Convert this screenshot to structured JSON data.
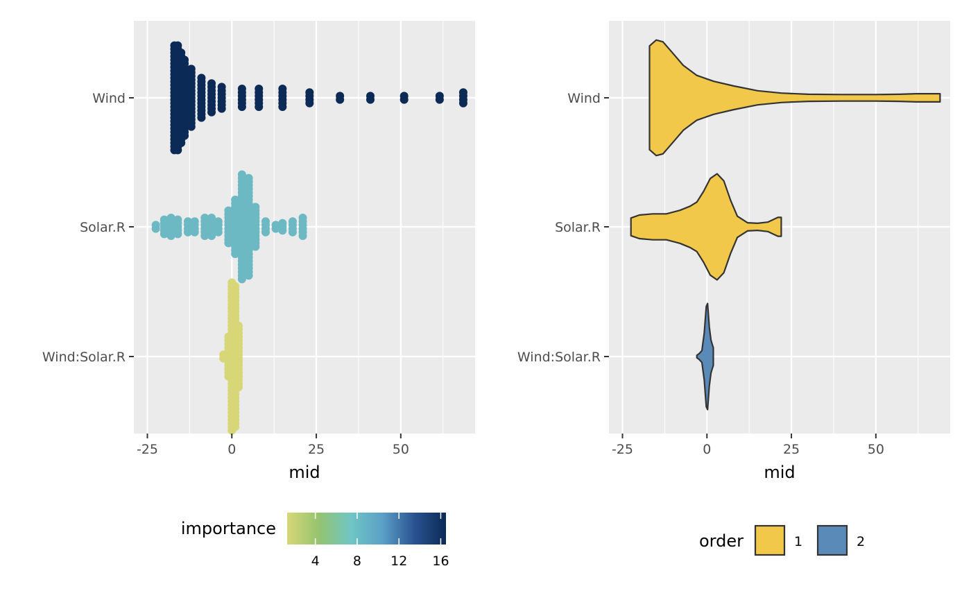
{
  "chart_data": [
    {
      "type": "scatter",
      "subtype": "beeswarm",
      "title": "",
      "xlabel": "mid",
      "ylabel": "",
      "xlim": [
        -29,
        72
      ],
      "x_ticks": [
        -25,
        0,
        25,
        50
      ],
      "x_tick_labels": [
        "-25",
        "0",
        "25",
        "50"
      ],
      "categories": [
        "Wind",
        "Solar.R",
        "Wind:Solar.R"
      ],
      "grid": true,
      "series": [
        {
          "category": "Wind",
          "importance": 16.5,
          "color": "#0b2a55",
          "points": [
            {
              "x": -17,
              "n": 30
            },
            {
              "x": -16,
              "n": 30
            },
            {
              "x": -15,
              "n": 26
            },
            {
              "x": -14,
              "n": 22
            },
            {
              "x": -12,
              "n": 17
            },
            {
              "x": -9,
              "n": 12
            },
            {
              "x": -6,
              "n": 9
            },
            {
              "x": -3,
              "n": 7
            },
            {
              "x": 3,
              "n": 6
            },
            {
              "x": 8,
              "n": 6
            },
            {
              "x": 15,
              "n": 6
            },
            {
              "x": 23,
              "n": 4
            },
            {
              "x": 32,
              "n": 2
            },
            {
              "x": 41,
              "n": 2
            },
            {
              "x": 51,
              "n": 2
            },
            {
              "x": 61.5,
              "n": 2
            },
            {
              "x": 68.5,
              "n": 4
            }
          ]
        },
        {
          "category": "Solar.R",
          "importance": 8,
          "color": "#6cb9c4",
          "points": [
            {
              "x": -22.5,
              "n": 2
            },
            {
              "x": -20,
              "n": 5
            },
            {
              "x": -18,
              "n": 6
            },
            {
              "x": -16,
              "n": 5
            },
            {
              "x": -13,
              "n": 4
            },
            {
              "x": -11,
              "n": 4
            },
            {
              "x": -8,
              "n": 6
            },
            {
              "x": -6,
              "n": 6
            },
            {
              "x": -4,
              "n": 4
            },
            {
              "x": -1,
              "n": 10
            },
            {
              "x": 1,
              "n": 16
            },
            {
              "x": 3,
              "n": 30
            },
            {
              "x": 5,
              "n": 28
            },
            {
              "x": 7,
              "n": 12
            },
            {
              "x": 10,
              "n": 4
            },
            {
              "x": 13,
              "n": 2
            },
            {
              "x": 15,
              "n": 3
            },
            {
              "x": 18,
              "n": 4
            },
            {
              "x": 21,
              "n": 6
            }
          ]
        },
        {
          "category": "Wind:Solar.R",
          "importance": 2,
          "color": "#d8d778",
          "points": [
            {
              "x": -2.5,
              "n": 2
            },
            {
              "x": -1,
              "n": 12
            },
            {
              "x": 0,
              "n": 42
            },
            {
              "x": 1,
              "n": 40
            },
            {
              "x": 2,
              "n": 18
            }
          ]
        }
      ],
      "legend": {
        "title": "importance",
        "type": "colorbar",
        "placement": "bottom",
        "range": [
          1.3,
          16.5
        ],
        "ticks": [
          4,
          8,
          12,
          16
        ],
        "tick_labels": [
          "4",
          "8",
          "12",
          "16"
        ],
        "colors": [
          "#d8d778",
          "#95c36f",
          "#70c6c4",
          "#5ba0c7",
          "#2a5391",
          "#0b2a55"
        ]
      }
    },
    {
      "type": "violin",
      "title": "",
      "xlabel": "mid",
      "ylabel": "",
      "xlim": [
        -29,
        72
      ],
      "x_ticks": [
        -25,
        0,
        25,
        50
      ],
      "x_tick_labels": [
        "-25",
        "0",
        "25",
        "50"
      ],
      "categories": [
        "Wind",
        "Solar.R",
        "Wind:Solar.R"
      ],
      "grid": true,
      "violins": [
        {
          "category": "Wind",
          "order": "1",
          "fill": "#f2c84b",
          "density": [
            [
              -17,
              0.88
            ],
            [
              -15,
              0.98
            ],
            [
              -13,
              0.95
            ],
            [
              -10,
              0.75
            ],
            [
              -7,
              0.55
            ],
            [
              -3,
              0.38
            ],
            [
              2,
              0.28
            ],
            [
              8,
              0.2
            ],
            [
              15,
              0.12
            ],
            [
              22,
              0.08
            ],
            [
              30,
              0.06
            ],
            [
              40,
              0.055
            ],
            [
              50,
              0.055
            ],
            [
              57,
              0.06
            ],
            [
              62,
              0.07
            ],
            [
              65,
              0.07
            ],
            [
              69,
              0.07
            ]
          ]
        },
        {
          "category": "Solar.R",
          "order": "1",
          "fill": "#f2c84b",
          "density": [
            [
              -22.5,
              0.15
            ],
            [
              -20,
              0.2
            ],
            [
              -16,
              0.22
            ],
            [
              -12,
              0.22
            ],
            [
              -8,
              0.28
            ],
            [
              -5,
              0.35
            ],
            [
              -3,
              0.42
            ],
            [
              -1,
              0.6
            ],
            [
              1,
              0.82
            ],
            [
              3,
              0.9
            ],
            [
              5,
              0.78
            ],
            [
              7,
              0.45
            ],
            [
              9,
              0.18
            ],
            [
              12,
              0.07
            ],
            [
              15,
              0.06
            ],
            [
              18,
              0.08
            ],
            [
              21,
              0.16
            ],
            [
              22,
              0.16
            ]
          ]
        },
        {
          "category": "Wind:Solar.R",
          "order": "2",
          "fill": "#5a8ab8",
          "density": [
            [
              -3,
              0.02
            ],
            [
              -2.3,
              0.05
            ],
            [
              -1.5,
              0.1
            ],
            [
              -0.8,
              0.4
            ],
            [
              -0.2,
              0.85
            ],
            [
              0.2,
              0.9
            ],
            [
              0.7,
              0.5
            ],
            [
              1.2,
              0.28
            ],
            [
              1.6,
              0.2
            ],
            [
              1.9,
              0.15
            ]
          ]
        }
      ],
      "legend": {
        "title": "order",
        "type": "keys",
        "placement": "bottom",
        "entries": [
          {
            "label": "1",
            "fill": "#f2c84b"
          },
          {
            "label": "2",
            "fill": "#5a8ab8"
          }
        ]
      }
    }
  ]
}
